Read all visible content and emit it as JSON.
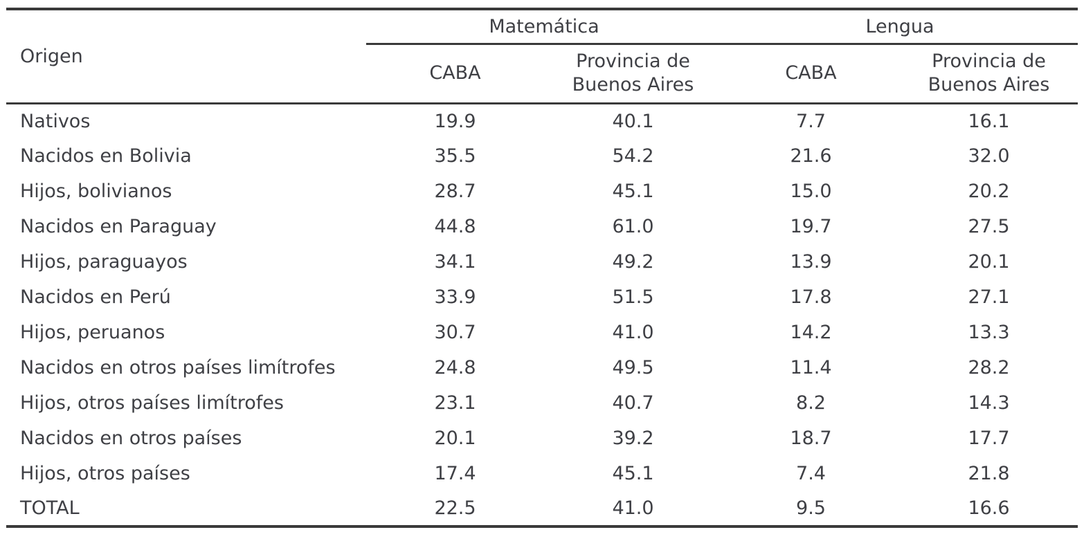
{
  "table": {
    "origin_header": "Origen",
    "groups": [
      {
        "label": "Matemática",
        "columns": [
          "CABA",
          "Provincia de Buenos Aires"
        ]
      },
      {
        "label": "Lengua",
        "columns": [
          "CABA",
          "Provincia de Buenos Aires"
        ]
      }
    ],
    "rows": [
      {
        "origen": "Nativos",
        "values": [
          "19.9",
          "40.1",
          "7.7",
          "16.1"
        ]
      },
      {
        "origen": "Nacidos en Bolivia",
        "values": [
          "35.5",
          "54.2",
          "21.6",
          "32.0"
        ]
      },
      {
        "origen": "Hijos, bolivianos",
        "values": [
          "28.7",
          "45.1",
          "15.0",
          "20.2"
        ]
      },
      {
        "origen": "Nacidos en Paraguay",
        "values": [
          "44.8",
          "61.0",
          "19.7",
          "27.5"
        ]
      },
      {
        "origen": "Hijos, paraguayos",
        "values": [
          "34.1",
          "49.2",
          "13.9",
          "20.1"
        ]
      },
      {
        "origen": "Nacidos en Perú",
        "values": [
          "33.9",
          "51.5",
          "17.8",
          "27.1"
        ]
      },
      {
        "origen": "Hijos, peruanos",
        "values": [
          "30.7",
          "41.0",
          "14.2",
          "13.3"
        ]
      },
      {
        "origen": "Nacidos en otros países limítrofes",
        "values": [
          "24.8",
          "49.5",
          "11.4",
          "28.2"
        ]
      },
      {
        "origen": "Hijos, otros países limítrofes",
        "values": [
          "23.1",
          "40.7",
          "8.2",
          "14.3"
        ]
      },
      {
        "origen": "Nacidos en otros países",
        "values": [
          "20.1",
          "39.2",
          "18.7",
          "17.7"
        ]
      },
      {
        "origen": "Hijos, otros países",
        "values": [
          "17.4",
          "45.1",
          "7.4",
          "21.8"
        ]
      },
      {
        "origen": "TOTAL",
        "values": [
          "22.5",
          "41.0",
          "9.5",
          "16.6"
        ]
      }
    ],
    "colors": {
      "text": "#3f4045",
      "rule": "#3a3a3a",
      "background": "#ffffff"
    }
  }
}
